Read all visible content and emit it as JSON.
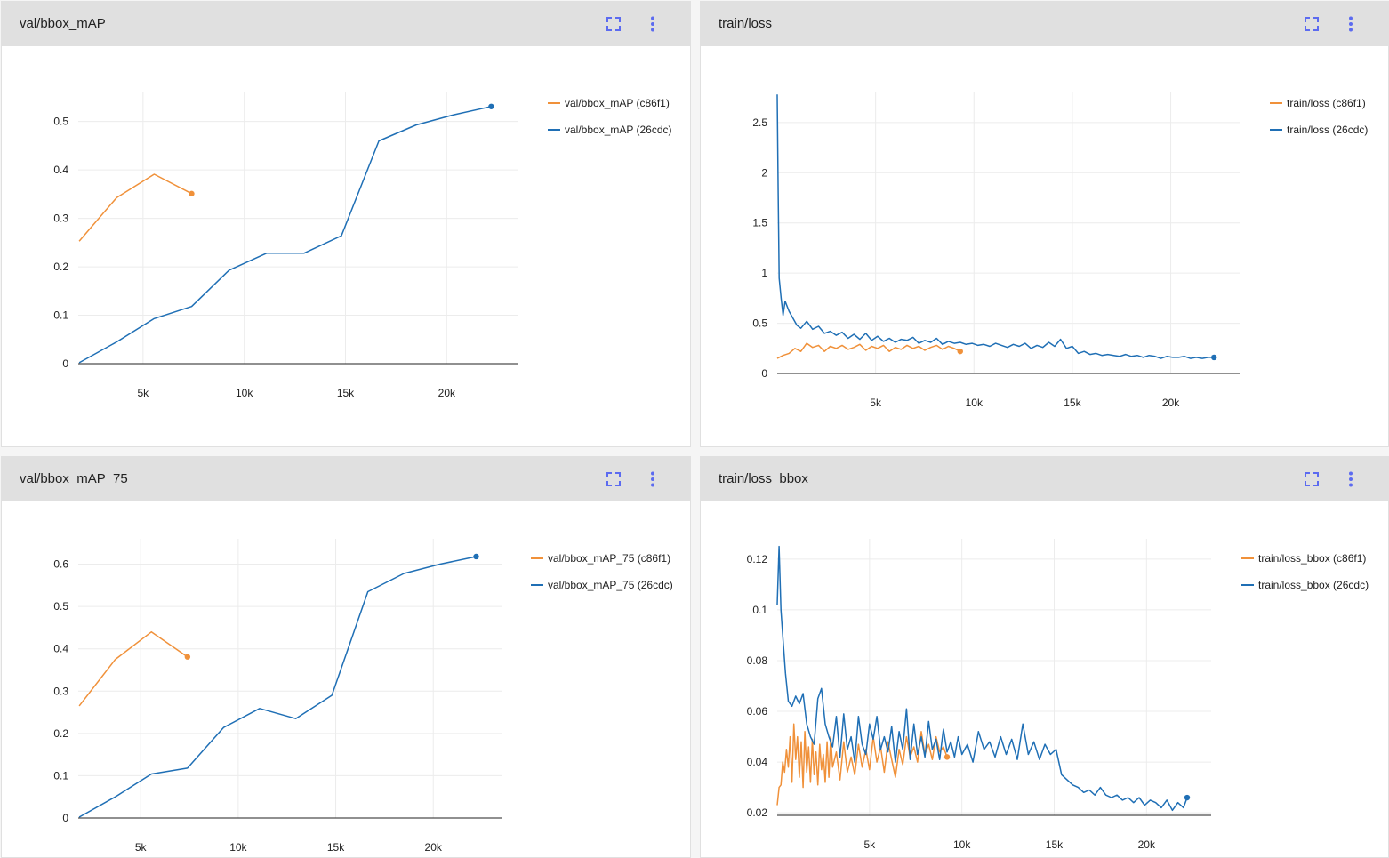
{
  "colors": {
    "c86f1": "#f0913a",
    "26cdc": "#1f6fb5",
    "accent": "#5c6bf0"
  },
  "panels": [
    {
      "title": "val/bbox_mAP",
      "fullscreen_icon": "fullscreen-icon",
      "menu_icon": "more-vert-icon",
      "chart_data": {
        "type": "line",
        "xlim": [
          1800,
          23500
        ],
        "ylim": [
          0,
          0.56
        ],
        "xticks": [
          5000,
          10000,
          15000,
          20000
        ],
        "xtick_labels": [
          "5k",
          "10k",
          "15k",
          "20k"
        ],
        "yticks": [
          0,
          0.1,
          0.2,
          0.3,
          0.4,
          0.5
        ],
        "ytick_labels": [
          "0",
          "0.1",
          "0.2",
          "0.3",
          "0.4",
          "0.5"
        ],
        "grid": true,
        "legend": "top-right",
        "series": [
          {
            "name": "val/bbox_mAP (c86f1)",
            "run": "c86f1",
            "x": [
              1850,
              3700,
              5550,
              7400
            ],
            "y": [
              0.253,
              0.343,
              0.391,
              0.351
            ]
          },
          {
            "name": "val/bbox_mAP (26cdc)",
            "run": "26cdc",
            "x": [
              1850,
              3700,
              5550,
              7400,
              9250,
              11100,
              12950,
              14800,
              16650,
              18500,
              20350,
              22200
            ],
            "y": [
              0.002,
              0.045,
              0.093,
              0.118,
              0.193,
              0.228,
              0.228,
              0.264,
              0.46,
              0.493,
              0.514,
              0.531
            ]
          }
        ]
      }
    },
    {
      "title": "train/loss",
      "fullscreen_icon": "fullscreen-icon",
      "menu_icon": "more-vert-icon",
      "chart_data": {
        "type": "line",
        "xlim": [
          0,
          23500
        ],
        "ylim": [
          0,
          2.8
        ],
        "xticks": [
          5000,
          10000,
          15000,
          20000
        ],
        "xtick_labels": [
          "5k",
          "10k",
          "15k",
          "20k"
        ],
        "yticks": [
          0,
          0.5,
          1,
          1.5,
          2,
          2.5
        ],
        "ytick_labels": [
          "0",
          "0.5",
          "1",
          "1.5",
          "2",
          "2.5"
        ],
        "grid": true,
        "legend": "top-right",
        "series": [
          {
            "name": "train/loss (c86f1)",
            "run": "c86f1",
            "x": [
              0,
              300,
              600,
              900,
              1200,
              1500,
              1800,
              2100,
              2400,
              2700,
              3000,
              3300,
              3600,
              3900,
              4200,
              4500,
              4800,
              5100,
              5400,
              5700,
              6000,
              6300,
              6600,
              6900,
              7200,
              7500,
              7800,
              8100,
              8400,
              8700,
              9000,
              9300
            ],
            "y": [
              0.15,
              0.18,
              0.2,
              0.25,
              0.22,
              0.3,
              0.26,
              0.28,
              0.22,
              0.27,
              0.25,
              0.28,
              0.24,
              0.26,
              0.29,
              0.23,
              0.27,
              0.25,
              0.28,
              0.22,
              0.26,
              0.24,
              0.28,
              0.25,
              0.27,
              0.23,
              0.26,
              0.28,
              0.24,
              0.27,
              0.25,
              0.22
            ]
          },
          {
            "name": "train/loss (26cdc)",
            "run": "26cdc",
            "x": [
              0,
              50,
              100,
              200,
              300,
              400,
              600,
              800,
              1000,
              1200,
              1500,
              1800,
              2100,
              2400,
              2700,
              3000,
              3300,
              3600,
              3900,
              4200,
              4500,
              4800,
              5100,
              5400,
              5700,
              6000,
              6300,
              6600,
              6900,
              7200,
              7500,
              7800,
              8100,
              8400,
              8700,
              9000,
              9300,
              9600,
              9900,
              10200,
              10500,
              10800,
              11100,
              11400,
              11700,
              12000,
              12300,
              12600,
              12900,
              13200,
              13500,
              13800,
              14100,
              14400,
              14700,
              15000,
              15300,
              15600,
              15900,
              16200,
              16500,
              16800,
              17100,
              17400,
              17700,
              18000,
              18300,
              18600,
              18900,
              19200,
              19500,
              19800,
              20100,
              20400,
              20700,
              21000,
              21300,
              21600,
              21900,
              22200
            ],
            "y": [
              2.78,
              1.8,
              0.95,
              0.75,
              0.58,
              0.72,
              0.62,
              0.55,
              0.48,
              0.45,
              0.52,
              0.44,
              0.47,
              0.4,
              0.42,
              0.38,
              0.41,
              0.35,
              0.39,
              0.34,
              0.4,
              0.33,
              0.37,
              0.32,
              0.35,
              0.31,
              0.34,
              0.33,
              0.36,
              0.3,
              0.33,
              0.31,
              0.35,
              0.29,
              0.32,
              0.3,
              0.31,
              0.29,
              0.3,
              0.28,
              0.29,
              0.27,
              0.3,
              0.28,
              0.26,
              0.29,
              0.27,
              0.3,
              0.25,
              0.28,
              0.26,
              0.31,
              0.27,
              0.34,
              0.25,
              0.27,
              0.2,
              0.22,
              0.19,
              0.2,
              0.18,
              0.19,
              0.18,
              0.17,
              0.19,
              0.17,
              0.18,
              0.16,
              0.18,
              0.17,
              0.15,
              0.17,
              0.16,
              0.16,
              0.17,
              0.15,
              0.16,
              0.15,
              0.16,
              0.16
            ]
          }
        ]
      }
    },
    {
      "title": "val/bbox_mAP_75",
      "fullscreen_icon": "fullscreen-icon",
      "menu_icon": "more-vert-icon",
      "chart_data": {
        "type": "line",
        "xlim": [
          1800,
          23500
        ],
        "ylim": [
          0,
          0.66
        ],
        "xticks": [
          5000,
          10000,
          15000,
          20000
        ],
        "xtick_labels": [
          "5k",
          "10k",
          "15k",
          "20k"
        ],
        "yticks": [
          0,
          0.1,
          0.2,
          0.3,
          0.4,
          0.5,
          0.6
        ],
        "ytick_labels": [
          "0",
          "0.1",
          "0.2",
          "0.3",
          "0.4",
          "0.5",
          "0.6"
        ],
        "grid": true,
        "legend": "top-right",
        "series": [
          {
            "name": "val/bbox_mAP_75 (c86f1)",
            "run": "c86f1",
            "x": [
              1850,
              3700,
              5550,
              7400
            ],
            "y": [
              0.265,
              0.375,
              0.44,
              0.381
            ]
          },
          {
            "name": "val/bbox_mAP_75 (26cdc)",
            "run": "26cdc",
            "x": [
              1850,
              3700,
              5550,
              7400,
              9250,
              11100,
              12950,
              14800,
              16650,
              18500,
              20350,
              22200
            ],
            "y": [
              0.002,
              0.05,
              0.104,
              0.118,
              0.214,
              0.259,
              0.235,
              0.29,
              0.535,
              0.578,
              0.6,
              0.618
            ]
          }
        ]
      }
    },
    {
      "title": "train/loss_bbox",
      "fullscreen_icon": "fullscreen-icon",
      "menu_icon": "more-vert-icon",
      "chart_data": {
        "type": "line",
        "xlim": [
          0,
          23500
        ],
        "ylim": [
          0.019,
          0.128
        ],
        "xticks": [
          5000,
          10000,
          15000,
          20000
        ],
        "xtick_labels": [
          "5k",
          "10k",
          "15k",
          "20k"
        ],
        "yticks": [
          0.02,
          0.04,
          0.06,
          0.08,
          0.1,
          0.12
        ],
        "ytick_labels": [
          "0.02",
          "0.04",
          "0.06",
          "0.08",
          "0.1",
          "0.12"
        ],
        "grid": true,
        "legend": "top-right",
        "series": [
          {
            "name": "train/loss_bbox (c86f1)",
            "run": "c86f1",
            "x": [
              0,
              100,
              200,
              300,
              400,
              500,
              600,
              700,
              800,
              900,
              1000,
              1100,
              1200,
              1300,
              1400,
              1500,
              1600,
              1700,
              1800,
              1900,
              2000,
              2100,
              2200,
              2300,
              2400,
              2500,
              2600,
              2700,
              2800,
              2900,
              3000,
              3200,
              3400,
              3600,
              3800,
              4000,
              4200,
              4400,
              4600,
              4800,
              5000,
              5200,
              5400,
              5600,
              5800,
              6000,
              6200,
              6400,
              6600,
              6800,
              7000,
              7200,
              7400,
              7600,
              7800,
              8000,
              8200,
              8400,
              8600,
              8800,
              9000,
              9200
            ],
            "y": [
              0.023,
              0.03,
              0.031,
              0.04,
              0.036,
              0.045,
              0.038,
              0.05,
              0.032,
              0.055,
              0.041,
              0.05,
              0.034,
              0.048,
              0.03,
              0.052,
              0.036,
              0.046,
              0.032,
              0.049,
              0.035,
              0.044,
              0.031,
              0.047,
              0.037,
              0.043,
              0.032,
              0.048,
              0.034,
              0.05,
              0.038,
              0.044,
              0.033,
              0.048,
              0.036,
              0.042,
              0.035,
              0.047,
              0.038,
              0.045,
              0.037,
              0.05,
              0.04,
              0.046,
              0.036,
              0.048,
              0.041,
              0.034,
              0.045,
              0.039,
              0.05,
              0.042,
              0.046,
              0.04,
              0.052,
              0.043,
              0.047,
              0.041,
              0.05,
              0.044,
              0.046,
              0.042
            ]
          },
          {
            "name": "train/loss_bbox (26cdc)",
            "run": "26cdc",
            "x": [
              0,
              100,
              200,
              300,
              450,
              600,
              800,
              1000,
              1200,
              1400,
              1600,
              1800,
              2000,
              2200,
              2400,
              2600,
              2800,
              3000,
              3200,
              3400,
              3600,
              3800,
              4000,
              4200,
              4400,
              4600,
              4800,
              5000,
              5200,
              5400,
              5600,
              5800,
              6000,
              6200,
              6400,
              6600,
              6800,
              7000,
              7200,
              7400,
              7600,
              7800,
              8000,
              8200,
              8400,
              8600,
              8800,
              9000,
              9200,
              9400,
              9600,
              9800,
              10000,
              10300,
              10600,
              10900,
              11200,
              11500,
              11800,
              12100,
              12400,
              12700,
              13000,
              13300,
              13600,
              13900,
              14200,
              14500,
              14800,
              15100,
              15400,
              15700,
              16000,
              16300,
              16600,
              16900,
              17200,
              17500,
              17800,
              18100,
              18400,
              18700,
              19000,
              19300,
              19600,
              19900,
              20200,
              20500,
              20800,
              21100,
              21400,
              21700,
              22000,
              22200
            ],
            "y": [
              0.102,
              0.125,
              0.1,
              0.09,
              0.075,
              0.064,
              0.062,
              0.066,
              0.063,
              0.067,
              0.055,
              0.05,
              0.047,
              0.065,
              0.069,
              0.055,
              0.05,
              0.046,
              0.058,
              0.042,
              0.059,
              0.045,
              0.05,
              0.04,
              0.058,
              0.047,
              0.043,
              0.055,
              0.049,
              0.058,
              0.045,
              0.05,
              0.044,
              0.054,
              0.04,
              0.052,
              0.045,
              0.061,
              0.041,
              0.055,
              0.043,
              0.05,
              0.042,
              0.056,
              0.045,
              0.049,
              0.041,
              0.053,
              0.044,
              0.048,
              0.042,
              0.05,
              0.043,
              0.047,
              0.04,
              0.052,
              0.045,
              0.048,
              0.042,
              0.05,
              0.043,
              0.049,
              0.041,
              0.055,
              0.043,
              0.048,
              0.041,
              0.047,
              0.043,
              0.045,
              0.035,
              0.033,
              0.031,
              0.03,
              0.028,
              0.029,
              0.027,
              0.03,
              0.027,
              0.026,
              0.027,
              0.025,
              0.026,
              0.024,
              0.026,
              0.023,
              0.025,
              0.024,
              0.022,
              0.025,
              0.021,
              0.024,
              0.022,
              0.026
            ]
          }
        ]
      }
    }
  ]
}
